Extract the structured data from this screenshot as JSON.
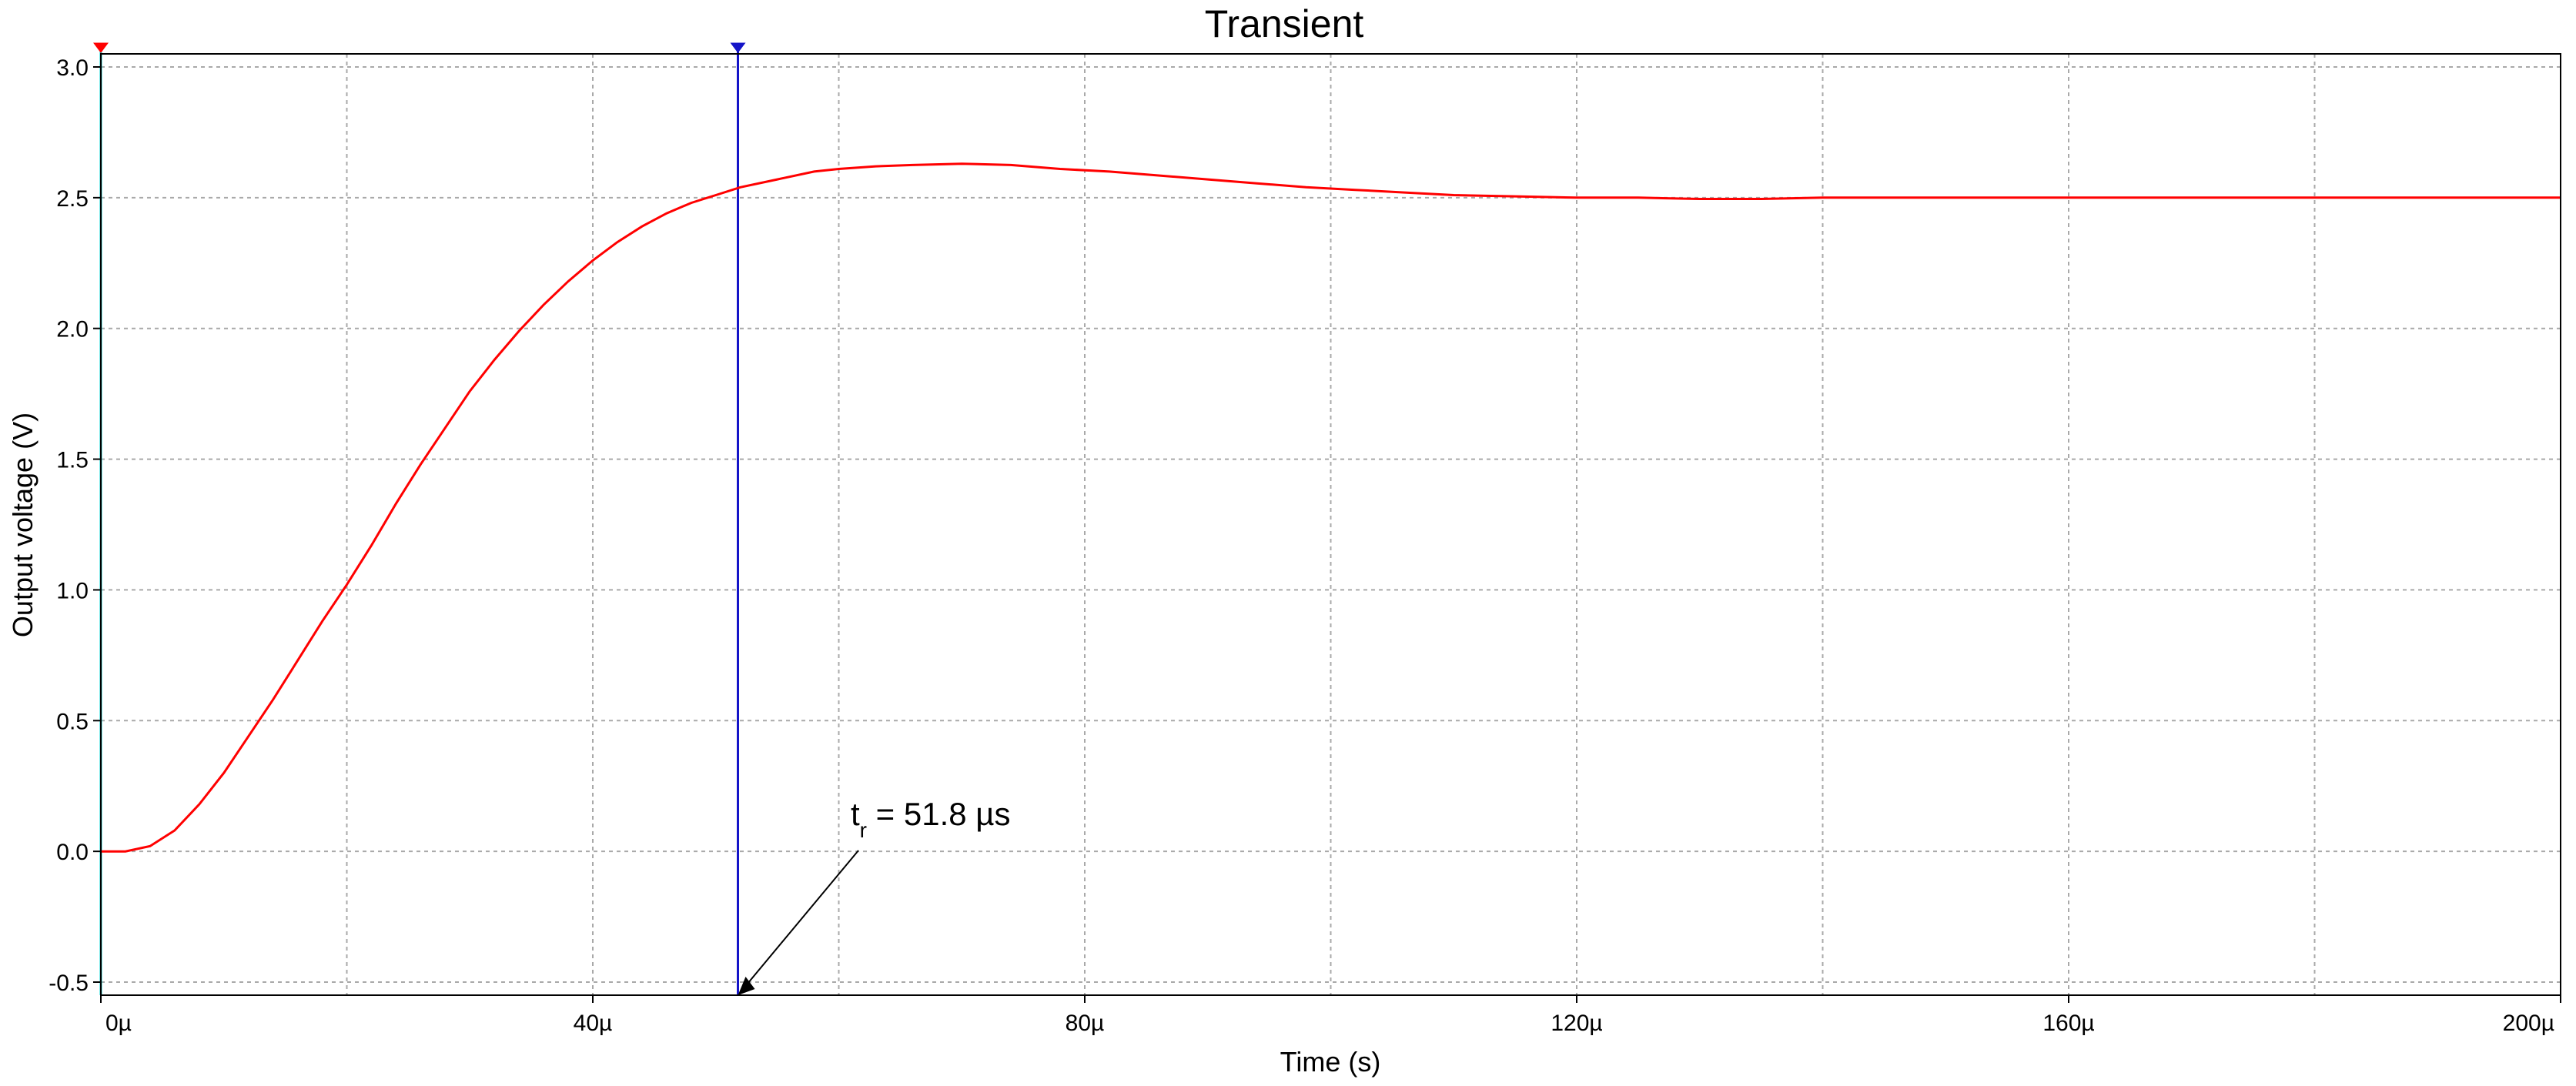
{
  "chart_data": {
    "type": "line",
    "title": "Transient",
    "xlabel": "Time (s)",
    "ylabel": "Output voltage (V)",
    "xlim": [
      0,
      0.0002
    ],
    "ylim": [
      -0.55,
      3.05
    ],
    "x_ticks": [
      {
        "value": 0,
        "label": "0µ"
      },
      {
        "value": 4e-05,
        "label": "40µ"
      },
      {
        "value": 8e-05,
        "label": "80µ"
      },
      {
        "value": 0.00012,
        "label": "120µ"
      },
      {
        "value": 0.00016,
        "label": "160µ"
      },
      {
        "value": 0.0002,
        "label": "200µ"
      }
    ],
    "x_minor_grid": [
      2e-05,
      6e-05,
      0.0001,
      0.00014,
      0.00018
    ],
    "y_ticks": [
      {
        "value": 3.0,
        "label": "3.0"
      },
      {
        "value": 2.5,
        "label": "2.5"
      },
      {
        "value": 2.0,
        "label": "2.0"
      },
      {
        "value": 1.5,
        "label": "1.5"
      },
      {
        "value": 1.0,
        "label": "1.0"
      },
      {
        "value": 0.5,
        "label": "0.5"
      },
      {
        "value": 0.0,
        "label": "0.0"
      },
      {
        "value": -0.5,
        "label": "-0.5"
      }
    ],
    "grid": true,
    "legend": "none",
    "series": [
      {
        "color": "#ff0000",
        "x": [
          0,
          2e-06,
          4e-06,
          6e-06,
          8e-06,
          1e-05,
          1.2e-05,
          1.4e-05,
          1.6e-05,
          1.8e-05,
          2e-05,
          2.2e-05,
          2.4e-05,
          2.6e-05,
          2.8e-05,
          3e-05,
          3.2e-05,
          3.4e-05,
          3.6e-05,
          3.8e-05,
          4e-05,
          4.2e-05,
          4.4e-05,
          4.6e-05,
          4.8e-05,
          5e-05,
          5.2e-05,
          5.5e-05,
          5.8e-05,
          6e-05,
          6.3e-05,
          6.6e-05,
          7e-05,
          7.4e-05,
          7.8e-05,
          8.2e-05,
          8.6e-05,
          9e-05,
          9.4e-05,
          9.8e-05,
          0.000102,
          0.000106,
          0.00011,
          0.000115,
          0.00012,
          0.000125,
          0.00013,
          0.000135,
          0.00014,
          0.000145,
          0.00015,
          0.000155,
          0.00016,
          0.000165,
          0.00017,
          0.000175,
          0.00018,
          0.000185,
          0.00019,
          0.000195,
          0.0002
        ],
        "values": [
          0,
          0.0,
          0.02,
          0.08,
          0.18,
          0.3,
          0.44,
          0.58,
          0.73,
          0.88,
          1.02,
          1.17,
          1.33,
          1.48,
          1.62,
          1.76,
          1.88,
          1.99,
          2.09,
          2.18,
          2.26,
          2.33,
          2.39,
          2.44,
          2.48,
          2.51,
          2.54,
          2.57,
          2.6,
          2.61,
          2.62,
          2.625,
          2.63,
          2.625,
          2.61,
          2.6,
          2.585,
          2.57,
          2.555,
          2.54,
          2.53,
          2.52,
          2.51,
          2.505,
          2.5,
          2.5,
          2.495,
          2.495,
          2.5,
          2.5,
          2.5,
          2.5,
          2.5,
          2.5,
          2.5,
          2.5,
          2.5,
          2.5,
          2.5,
          2.5,
          2.5
        ]
      }
    ],
    "cursors": [
      {
        "x": 0,
        "color": "#00d8d8"
      },
      {
        "x": 5.18e-05,
        "color": "#1414c8"
      }
    ],
    "annotation": {
      "label": "t",
      "subscript": "r",
      "text": " = 51.8 µs",
      "target_x": 5.18e-05,
      "target_y": -0.55
    }
  }
}
